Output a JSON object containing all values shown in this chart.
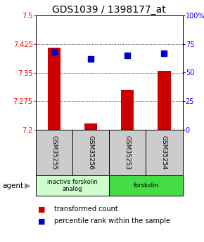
{
  "title": "GDS1039 / 1398177_at",
  "samples": [
    "GSM35255",
    "GSM35256",
    "GSM35253",
    "GSM35254"
  ],
  "red_values": [
    7.415,
    7.215,
    7.305,
    7.355
  ],
  "blue_values": [
    68,
    62,
    65,
    67
  ],
  "ylim_left": [
    7.2,
    7.5
  ],
  "ylim_right": [
    0,
    100
  ],
  "yticks_left": [
    7.2,
    7.275,
    7.35,
    7.425,
    7.5
  ],
  "ytick_labels_left": [
    "7.2",
    "7.275",
    "7.35",
    "7.425",
    "7.5"
  ],
  "yticks_right": [
    0,
    25,
    50,
    75,
    100
  ],
  "ytick_labels_right": [
    "0",
    "25",
    "50",
    "75",
    "100%"
  ],
  "groups": [
    {
      "label": "inactive forskolin\nanalog",
      "color": "#ccffcc",
      "samples": [
        0,
        1
      ]
    },
    {
      "label": "forskolin",
      "color": "#44dd44",
      "samples": [
        2,
        3
      ]
    }
  ],
  "bar_color": "#cc0000",
  "dot_color": "#0000cc",
  "bar_width": 0.35,
  "dot_size": 30,
  "plot_bg": "#ffffff",
  "sample_bg": "#cccccc",
  "title_fontsize": 10,
  "tick_fontsize": 7,
  "label_fontsize": 6.5,
  "legend_fontsize": 7
}
